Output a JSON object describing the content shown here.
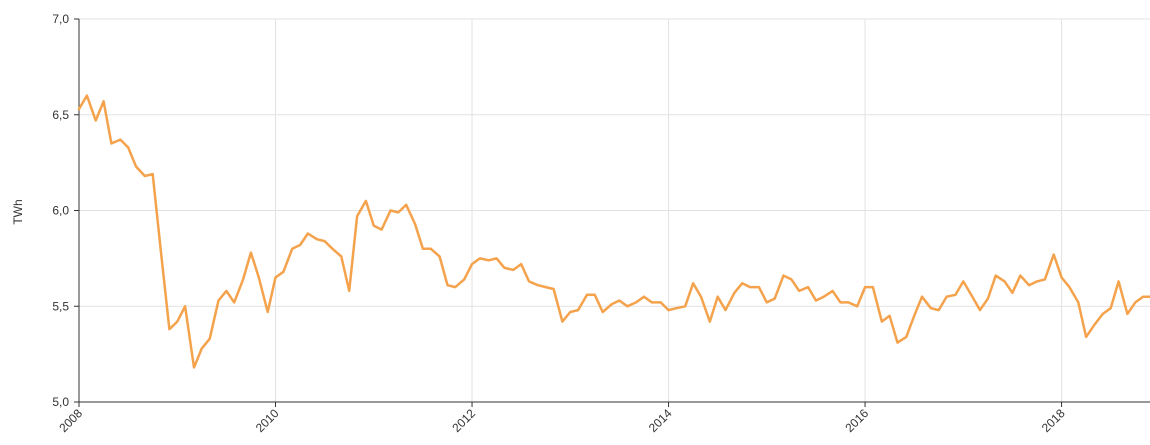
{
  "chart_data": {
    "type": "line",
    "title": "",
    "xlabel": "",
    "ylabel": "TWh",
    "xlim": [
      2008,
      2018.9
    ],
    "ylim": [
      5.0,
      7.0
    ],
    "y_ticks": [
      "5,0",
      "5,5",
      "6,0",
      "6,5",
      "7,0"
    ],
    "y_tick_values": [
      5.0,
      5.5,
      6.0,
      6.5,
      7.0
    ],
    "x_ticks": [
      "2008",
      "2010",
      "2012",
      "2014",
      "2016",
      "2018"
    ],
    "x_tick_values": [
      2008,
      2010,
      2012,
      2014,
      2016,
      2018
    ],
    "grid": true,
    "colors": {
      "line": "#f4a24c",
      "grid": "#e2e2e2",
      "axis": "#333333"
    },
    "series": [
      {
        "x": [
          2008.0,
          2008.08,
          2008.17,
          2008.25,
          2008.33,
          2008.42,
          2008.5,
          2008.58,
          2008.67,
          2008.75,
          2008.83,
          2008.92,
          2009.0,
          2009.08,
          2009.17,
          2009.25,
          2009.33,
          2009.42,
          2009.5,
          2009.58,
          2009.67,
          2009.75,
          2009.83,
          2009.92,
          2010.0,
          2010.08,
          2010.17,
          2010.25,
          2010.33,
          2010.42,
          2010.5,
          2010.58,
          2010.67,
          2010.75,
          2010.83,
          2010.92,
          2011.0,
          2011.08,
          2011.17,
          2011.25,
          2011.33,
          2011.42,
          2011.5,
          2011.58,
          2011.67,
          2011.75,
          2011.83,
          2011.92,
          2012.0,
          2012.08,
          2012.17,
          2012.25,
          2012.33,
          2012.42,
          2012.5,
          2012.58,
          2012.67,
          2012.75,
          2012.83,
          2012.92,
          2013.0,
          2013.08,
          2013.17,
          2013.25,
          2013.33,
          2013.42,
          2013.5,
          2013.58,
          2013.67,
          2013.75,
          2013.83,
          2013.92,
          2014.0,
          2014.08,
          2014.17,
          2014.25,
          2014.33,
          2014.42,
          2014.5,
          2014.58,
          2014.67,
          2014.75,
          2014.83,
          2014.92,
          2015.0,
          2015.08,
          2015.17,
          2015.25,
          2015.33,
          2015.42,
          2015.5,
          2015.58,
          2015.67,
          2015.75,
          2015.83,
          2015.92,
          2016.0,
          2016.08,
          2016.17,
          2016.25,
          2016.33,
          2016.42,
          2016.5,
          2016.58,
          2016.67,
          2016.75,
          2016.83,
          2016.92,
          2017.0,
          2017.08,
          2017.17,
          2017.25,
          2017.33,
          2017.42,
          2017.5,
          2017.58,
          2017.67,
          2017.75,
          2017.83,
          2017.92,
          2018.0,
          2018.08,
          2018.17,
          2018.25,
          2018.33,
          2018.42,
          2018.5,
          2018.58,
          2018.67,
          2018.75,
          2018.83,
          2018.92
        ],
        "values": [
          6.53,
          6.6,
          6.47,
          6.57,
          6.35,
          6.37,
          6.33,
          6.23,
          6.18,
          6.19,
          5.8,
          5.38,
          5.42,
          5.5,
          5.18,
          5.28,
          5.33,
          5.53,
          5.58,
          5.52,
          5.64,
          5.78,
          5.65,
          5.47,
          5.65,
          5.68,
          5.8,
          5.82,
          5.88,
          5.85,
          5.84,
          5.8,
          5.76,
          5.58,
          5.97,
          6.05,
          5.92,
          5.9,
          6.0,
          5.99,
          6.03,
          5.93,
          5.8,
          5.8,
          5.76,
          5.61,
          5.6,
          5.64,
          5.72,
          5.75,
          5.74,
          5.75,
          5.7,
          5.69,
          5.72,
          5.63,
          5.61,
          5.6,
          5.59,
          5.42,
          5.47,
          5.48,
          5.56,
          5.56,
          5.47,
          5.51,
          5.53,
          5.5,
          5.52,
          5.55,
          5.52,
          5.52,
          5.48,
          5.49,
          5.5,
          5.62,
          5.55,
          5.42,
          5.55,
          5.48,
          5.57,
          5.62,
          5.6,
          5.6,
          5.52,
          5.54,
          5.66,
          5.64,
          5.58,
          5.6,
          5.53,
          5.55,
          5.58,
          5.52,
          5.52,
          5.5,
          5.6,
          5.6,
          5.42,
          5.45,
          5.31,
          5.34,
          5.45,
          5.55,
          5.49,
          5.48,
          5.55,
          5.56,
          5.63,
          5.56,
          5.48,
          5.54,
          5.66,
          5.63,
          5.57,
          5.66,
          5.61,
          5.63,
          5.64,
          5.77,
          5.65,
          5.6,
          5.52,
          5.34,
          5.4,
          5.46,
          5.49,
          5.63,
          5.46,
          5.52,
          5.55,
          5.55
        ]
      }
    ]
  }
}
